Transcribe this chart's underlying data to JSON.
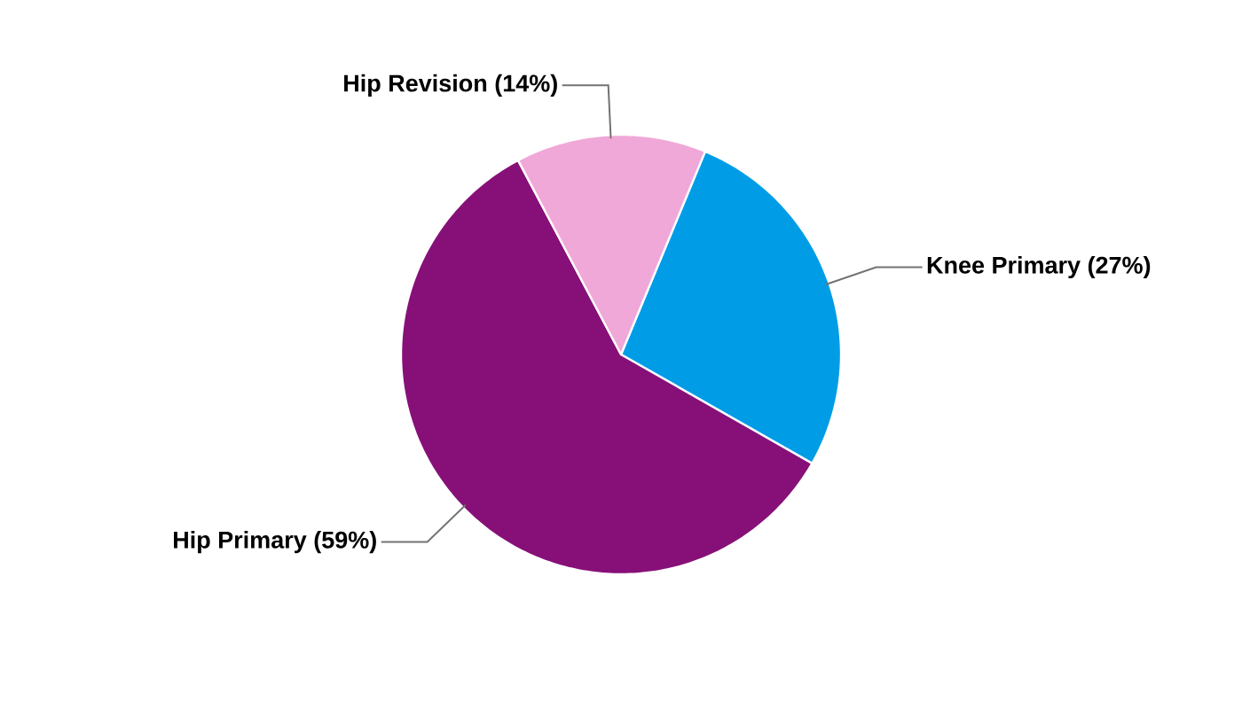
{
  "chart_data": {
    "type": "pie",
    "categories": [
      "Knee Primary (27%)",
      "Hip Primary (59%)",
      "Hip Revision (14%)"
    ],
    "values": [
      27,
      59,
      14
    ],
    "colors": [
      "#009de6",
      "#871078",
      "#f0a8d8"
    ]
  }
}
